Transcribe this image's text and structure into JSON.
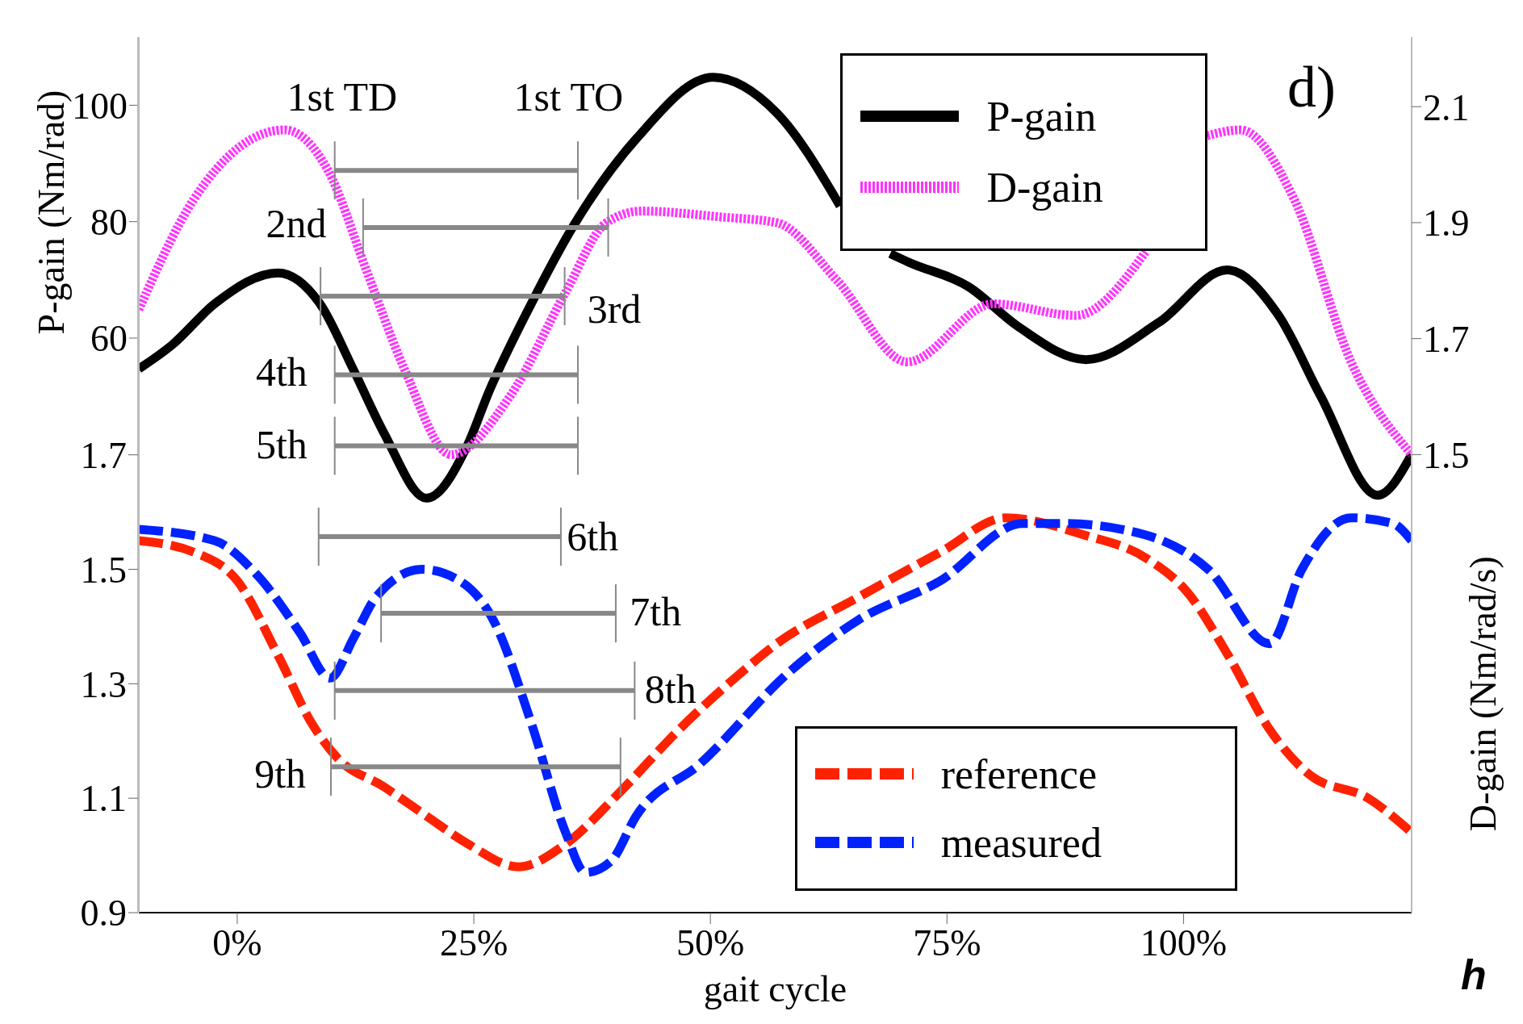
{
  "chart_data": {
    "type": "line",
    "xlabel": "gait cycle",
    "ylabel": "P-gain (Nm/rad)",
    "y2label": "D-gain (Nm/rad/s)",
    "xlim": [
      -10.4,
      124.1
    ],
    "xticks": [
      {
        "value": 0,
        "label": "0%"
      },
      {
        "value": 25,
        "label": "25%"
      },
      {
        "value": 50,
        "label": "50%"
      },
      {
        "value": 75,
        "label": "75%"
      },
      {
        "value": 100,
        "label": "100%"
      }
    ],
    "ylim": [
      -38.7,
      111.7
    ],
    "yticks": [
      60,
      80,
      100
    ],
    "y2lim": [
      0.71,
      2.22
    ],
    "y2ticks": [
      1.5,
      1.7,
      1.9,
      2.1
    ],
    "y3lim": [
      0.9,
      2.43
    ],
    "y3ticks": [
      0.9,
      1.1,
      1.3,
      1.5,
      1.7
    ],
    "grid": false,
    "legend": "right",
    "series": [
      {
        "name": "P-gain",
        "color": "#000000",
        "axis": "y",
        "line_style": "solid",
        "x": [
          -10.4,
          -6.9,
          -2.3,
          4.3,
          8.7,
          12.3,
          15.5,
          20,
          24.3,
          26.6,
          31.1,
          35.5,
          42.2,
          50.3,
          57,
          63.7,
          65.5,
          69,
          71,
          77.3,
          82.5,
          89.7,
          97.4,
          104.6,
          110,
          114.5,
          120.5,
          124.1
        ],
        "values": [
          54.7,
          58.8,
          66,
          71.2,
          66,
          54.5,
          43.7,
          32.5,
          41.5,
          50.8,
          66,
          79.2,
          94.3,
          104.8,
          98.7,
          82.7,
          null,
          74.5,
          73,
          68.8,
          62,
          56.3,
          62.7,
          71.7,
          64,
          50,
          33,
          40
        ]
      },
      {
        "name": "D-gain",
        "color": "#ff33ff",
        "axis": "y2",
        "line_style": "dotted",
        "x": [
          -10.4,
          -4.6,
          5,
          9.6,
          13.6,
          17.6,
          22.6,
          28.8,
          34.7,
          39,
          42.7,
          51,
          57,
          63.4,
          70.8,
          79.9,
          88.6,
          96,
          99,
          102.5,
          106,
          111.7,
          117.7,
          124.1
        ],
        "values": [
          1.75,
          1.94,
          2.06,
          1.99,
          1.82,
          1.65,
          1.5,
          1.6,
          1.78,
          1.9,
          1.92,
          1.91,
          1.9,
          1.8,
          1.66,
          1.76,
          1.74,
          1.85,
          null,
          2.05,
          2.06,
          1.94,
          1.66,
          1.5
        ]
      },
      {
        "name": "reference",
        "color": "#ff2200",
        "axis": "y3",
        "line_style": "dashed",
        "x": [
          -10.4,
          -4.6,
          0,
          4.3,
          7.9,
          10.6,
          15.5,
          19.9,
          24.4,
          29.7,
          34.7,
          40.4,
          46.7,
          53.3,
          57,
          65.5,
          74.3,
          81.2,
          89.5,
          96,
          100.4,
          104.7,
          109.1,
          113.4,
          119.5,
          124.1
        ],
        "values": [
          1.55,
          1.53,
          1.48,
          1.35,
          1.23,
          1.17,
          1.12,
          1.07,
          1.02,
          0.98,
          1.02,
          1.11,
          1.22,
          1.32,
          1.37,
          1.45,
          1.53,
          1.59,
          1.56,
          1.52,
          1.46,
          1.35,
          1.22,
          1.14,
          1.1,
          1.04
        ]
      },
      {
        "name": "measured",
        "color": "#0022ff",
        "axis": "y3",
        "line_style": "dashed",
        "x": [
          -10.4,
          -2.4,
          2.1,
          6.6,
          9.8,
          12.3,
          14.6,
          19.5,
          23.5,
          27.1,
          31.1,
          34.7,
          36.8,
          39.5,
          42.2,
          48.9,
          58.3,
          65.5,
          74.3,
          83,
          87.3,
          96,
          102.6,
          109.1,
          112.5,
          117.7,
          122.1,
          124.1
        ],
        "values": [
          1.57,
          1.55,
          1.49,
          1.39,
          1.31,
          1.38,
          1.45,
          1.5,
          1.48,
          1.41,
          1.23,
          1.04,
          0.97,
          0.99,
          1.07,
          1.16,
          1.32,
          1.41,
          1.48,
          1.58,
          1.58,
          1.56,
          1.5,
          1.37,
          1.5,
          1.59,
          1.58,
          1.55
        ]
      },
      {
        "color": "#888888",
        "axis": "y",
        "x": [
          10.3,
          36
        ],
        "values": [
          88.8,
          88.8
        ]
      },
      {
        "color": "#888888",
        "axis": "y",
        "x": [
          13.3,
          39.2
        ],
        "values": [
          79,
          79
        ]
      },
      {
        "color": "#888888",
        "axis": "y",
        "x": [
          8.8,
          34.6
        ],
        "values": [
          67.2,
          67.2
        ]
      },
      {
        "color": "#888888",
        "axis": "y",
        "x": [
          10.3,
          36
        ],
        "values": [
          53.7,
          53.7
        ]
      },
      {
        "color": "#888888",
        "axis": "y",
        "x": [
          10.3,
          36
        ],
        "values": [
          41.5,
          41.5
        ]
      },
      {
        "color": "#888888",
        "axis": "y3",
        "x": [
          8.6,
          34.2
        ],
        "values": [
          1.557,
          1.557
        ]
      },
      {
        "color": "#888888",
        "axis": "y3",
        "x": [
          15.2,
          40
        ],
        "values": [
          1.423,
          1.423
        ]
      },
      {
        "color": "#888888",
        "axis": "y3",
        "x": [
          10.3,
          42
        ],
        "values": [
          1.288,
          1.288
        ]
      },
      {
        "color": "#888888",
        "axis": "y3",
        "x": [
          9.9,
          40.5
        ],
        "values": [
          1.155,
          1.155
        ]
      }
    ],
    "annotations": [
      {
        "text": "1st TD",
        "x": 10.3,
        "y": 88.8
      },
      {
        "text": "1st TO",
        "x": 36,
        "y": 88.8
      },
      {
        "text": "2nd",
        "x": 13.3,
        "y": 79
      },
      {
        "text": "3rd",
        "x": 34.6,
        "y": 67.2
      },
      {
        "text": "4th",
        "x": 10.3,
        "y": 53.7
      },
      {
        "text": "5th",
        "x": 10.3,
        "y": 41.5
      },
      {
        "text": "6th",
        "x": 34.2,
        "y": 25.8
      },
      {
        "text": "7th",
        "x": 40,
        "y": 12.7
      },
      {
        "text": "8th",
        "x": 42,
        "y": -0.7
      },
      {
        "text": "9th",
        "x": 9.9,
        "y": -13.8
      },
      "d)",
      "h"
    ]
  }
}
